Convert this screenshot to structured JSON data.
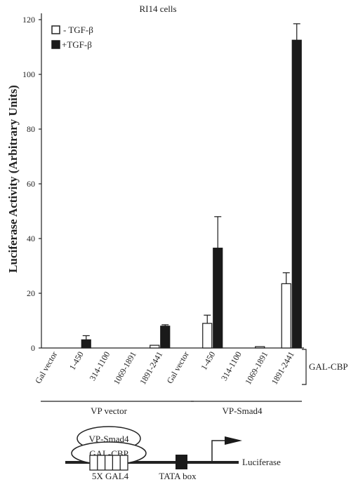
{
  "chart_data": {
    "type": "bar",
    "title": "RI14 cells",
    "ylabel": "Luciferase Activity (Arbitrary Units)",
    "xlabel": "",
    "ylim": [
      0,
      120
    ],
    "yticks": [
      0,
      20,
      40,
      60,
      80,
      100,
      120
    ],
    "categories": [
      "Gal vector",
      "1-450",
      "314-1100",
      "1069-1891",
      "1891-2441",
      "Gal vector",
      "1-450",
      "314-1100",
      "1069-1891",
      "1891-2441"
    ],
    "groups": [
      {
        "label": "VP vector",
        "start": 0,
        "end": 4
      },
      {
        "label": "VP-Smad4",
        "start": 5,
        "end": 9
      }
    ],
    "bracket_label": "GAL-CBP",
    "series": [
      {
        "name": "- TGF-β",
        "fill": "#ffffff",
        "values": [
          0,
          0,
          0,
          0,
          1.0,
          0,
          9.0,
          0,
          0.5,
          23.5
        ],
        "errors": [
          0,
          0,
          0,
          0,
          0,
          0,
          3.0,
          0,
          0,
          4.0
        ]
      },
      {
        "name": "+TGF-β",
        "fill": "#1a1a1a",
        "values": [
          0,
          3.0,
          0,
          0,
          8.0,
          0,
          36.5,
          0,
          0,
          112.5
        ],
        "errors": [
          0,
          1.5,
          0,
          0,
          0.5,
          0,
          11.5,
          0,
          0,
          6.0
        ]
      }
    ],
    "legend_position": "top-left"
  },
  "diagram": {
    "top_oval": "VP-Smad4",
    "bottom_oval": "GAL-CBP",
    "gal4_label": "5X GAL4",
    "tata_label": "TATA box",
    "reporter_label": "Luciferase"
  }
}
